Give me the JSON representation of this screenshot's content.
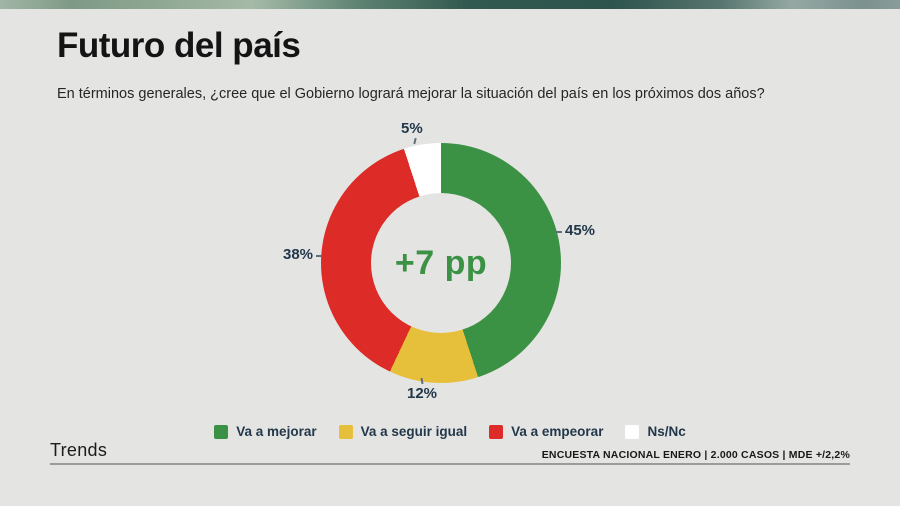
{
  "slide": {
    "title": "Futuro del país",
    "subtitle": "En términos generales, ¿cree que el Gobierno logrará mejorar la situación del país en los próximos dos años?"
  },
  "chart_data": {
    "type": "pie",
    "variant": "donut",
    "title": "Futuro del país",
    "question": "En términos generales, ¿cree que el Gobierno logrará mejorar la situación del país en los próximos dos años?",
    "categories": [
      "Va a mejorar",
      "Va a seguir igual",
      "Va a empeorar",
      "Ns/Nc"
    ],
    "values": [
      45,
      12,
      38,
      5
    ],
    "unit": "%",
    "colors": [
      "#3b9144",
      "#e7c03b",
      "#dd2b27",
      "#ffffff"
    ],
    "data_labels": [
      "45%",
      "12%",
      "38%",
      "5%"
    ],
    "center_label": "+7 pp",
    "center_label_color": "#3b9144",
    "start_angle_deg": 0,
    "direction": "clockwise",
    "legend_position": "bottom"
  },
  "legend": {
    "items": [
      {
        "label": "Va a mejorar",
        "color": "#3b9144"
      },
      {
        "label": "Va a seguir igual",
        "color": "#e7c03b"
      },
      {
        "label": "Va a empeorar",
        "color": "#dd2b27"
      },
      {
        "label": "Ns/Nc",
        "color": "#ffffff"
      }
    ]
  },
  "footer": {
    "brand": "Trends",
    "source": "ENCUESTA NACIONAL ENERO | 2.000 CASOS | MDE +/2,2%"
  }
}
